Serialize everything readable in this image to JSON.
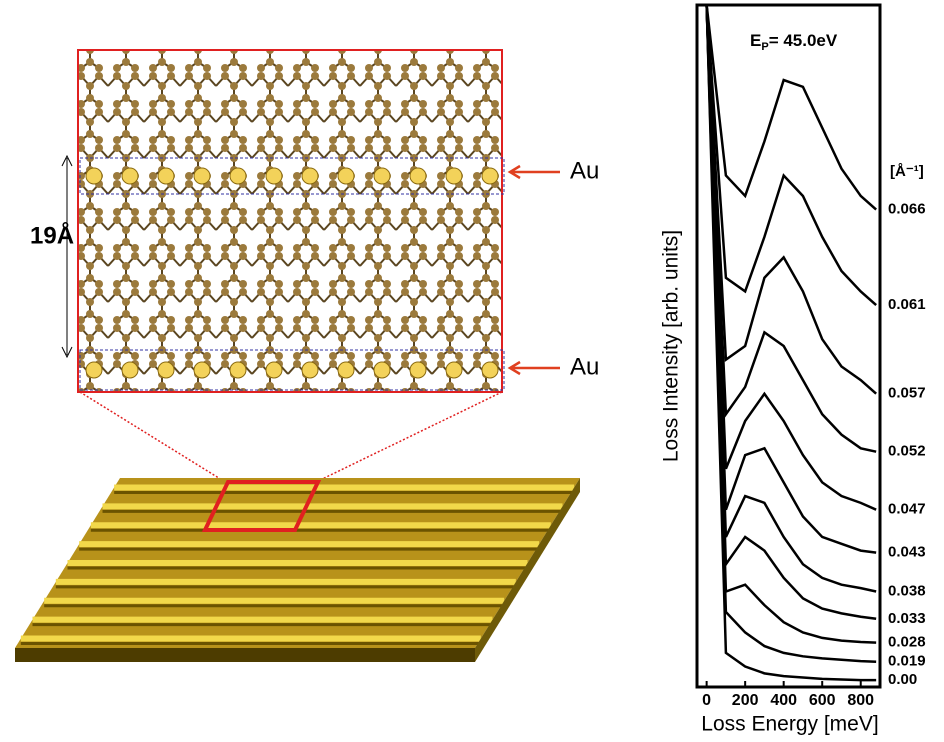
{
  "diagram": {
    "dimension_label": "19Å",
    "atom_labels": [
      "Au",
      "Au"
    ]
  },
  "chart_data": {
    "type": "line",
    "annotation": {
      "text": "E",
      "subscript": "P",
      "rest": "= 45.0eV"
    },
    "series_unit": "[Å⁻¹]",
    "xlabel": "Loss Energy [meV]",
    "ylabel": "Loss Intensity [arb. units]",
    "xlim": [
      -50,
      900
    ],
    "xticks": [
      0,
      200,
      400,
      600,
      800
    ],
    "ylim": [
      0,
      100
    ],
    "x": [
      0,
      100,
      200,
      300,
      400,
      500,
      600,
      700,
      800,
      880
    ],
    "color": "#000000",
    "series": [
      {
        "name": "0.066",
        "values": [
          100,
          75,
          72,
          80,
          89,
          88,
          82,
          76,
          72,
          70
        ]
      },
      {
        "name": "0.061",
        "values": [
          100,
          60,
          58,
          66,
          75,
          72,
          66,
          61,
          58,
          56
        ]
      },
      {
        "name": "0.057",
        "values": [
          100,
          48,
          50,
          60,
          63,
          58,
          51,
          47,
          45,
          43
        ]
      },
      {
        "name": "0.052",
        "values": [
          100,
          40,
          44,
          52,
          50,
          45,
          40,
          37,
          35,
          34.5
        ]
      },
      {
        "name": "0.047",
        "values": [
          100,
          32,
          39,
          43,
          39,
          34,
          30,
          28,
          27,
          26
        ]
      },
      {
        "name": "0.043",
        "values": [
          100,
          26,
          34,
          35,
          30,
          25,
          22,
          21,
          20,
          19.7
        ]
      },
      {
        "name": "0.038",
        "values": [
          100,
          22,
          28,
          27,
          22,
          18,
          16,
          15,
          14.5,
          14
        ]
      },
      {
        "name": "0.033",
        "values": [
          100,
          18,
          22,
          20,
          16,
          13,
          11.5,
          10.8,
          10.3,
          10
        ]
      },
      {
        "name": "0.028",
        "values": [
          100,
          14,
          15,
          12,
          9.5,
          8,
          7.2,
          6.8,
          6.6,
          6.5
        ]
      },
      {
        "name": "0.019",
        "values": [
          100,
          11,
          8,
          6,
          5,
          4.5,
          4.2,
          4,
          3.8,
          3.7
        ]
      },
      {
        "name": "0.00",
        "values": [
          100,
          5,
          3,
          2,
          1.6,
          1.4,
          1.2,
          1.1,
          1,
          1
        ]
      }
    ]
  }
}
